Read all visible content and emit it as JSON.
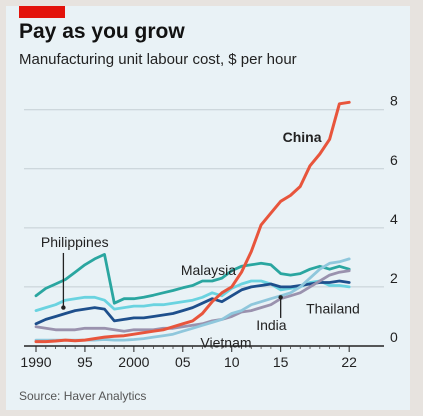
{
  "header": {
    "title": "Pay as you grow",
    "subtitle": "Manufacturing unit labour cost, $ per hour",
    "accent_color": "#e3120b"
  },
  "footer": {
    "source": "Source: Haver Analytics"
  },
  "chart_data": {
    "type": "line",
    "title": "Pay as you grow",
    "subtitle": "Manufacturing unit labour cost, $ per hour",
    "xlabel": "",
    "ylabel": "",
    "xlim": [
      1990,
      2022.8
    ],
    "ylim": [
      0,
      8.6
    ],
    "x_ticks": [
      1990,
      1995,
      2000,
      2005,
      2010,
      2015,
      2022
    ],
    "x_tick_labels": [
      "1990",
      "95",
      "2000",
      "05",
      "10",
      "15",
      "22"
    ],
    "y_ticks": [
      0,
      2,
      4,
      6,
      8
    ],
    "y_tick_labels": [
      "0",
      "2",
      "4",
      "6",
      "8"
    ],
    "y_axis_position": "right",
    "grid": "horizontal",
    "legend": "inline labels",
    "series": [
      {
        "name": "Philippines",
        "color": "#2aa6a0",
        "label_pos": [
          1992.8,
          1.3
        ],
        "x": [
          1990,
          1991,
          1992,
          1993,
          1994,
          1995,
          1996,
          1997,
          1998,
          1999,
          2000,
          2001,
          2002,
          2003,
          2004,
          2005,
          2006,
          2007,
          2008,
          2009,
          2010,
          2011,
          2012,
          2013,
          2014,
          2015,
          2016,
          2017,
          2018,
          2019,
          2020,
          2021,
          2022
        ],
        "y": [
          1.7,
          1.95,
          2.1,
          2.25,
          2.5,
          2.75,
          2.95,
          3.1,
          1.45,
          1.6,
          1.6,
          1.65,
          1.72,
          1.8,
          1.88,
          1.97,
          2.05,
          2.2,
          2.2,
          2.3,
          2.55,
          2.7,
          2.75,
          2.8,
          2.75,
          2.45,
          2.4,
          2.45,
          2.6,
          2.7,
          2.6,
          2.7,
          2.6
        ]
      },
      {
        "name": "Malaysia",
        "color": "#6ad3e0",
        "x": [
          1990,
          1991,
          1992,
          1993,
          1994,
          1995,
          1996,
          1997,
          1998,
          1999,
          2000,
          2001,
          2002,
          2003,
          2004,
          2005,
          2006,
          2007,
          2008,
          2009,
          2010,
          2011,
          2012,
          2013,
          2014,
          2015,
          2016,
          2017,
          2018,
          2019,
          2020,
          2021,
          2022
        ],
        "y": [
          1.2,
          1.3,
          1.4,
          1.55,
          1.6,
          1.65,
          1.65,
          1.55,
          1.25,
          1.3,
          1.35,
          1.35,
          1.4,
          1.4,
          1.45,
          1.5,
          1.55,
          1.65,
          1.8,
          1.7,
          1.95,
          2.1,
          2.2,
          2.2,
          2.1,
          1.9,
          1.95,
          2.0,
          2.15,
          2.2,
          2.05,
          2.05,
          2.0
        ]
      },
      {
        "name": "Thailand",
        "color": "#1e4f8c",
        "x": [
          1990,
          1991,
          1992,
          1993,
          1994,
          1995,
          1996,
          1997,
          1998,
          1999,
          2000,
          2001,
          2002,
          2003,
          2004,
          2005,
          2006,
          2007,
          2008,
          2009,
          2010,
          2011,
          2012,
          2013,
          2014,
          2015,
          2016,
          2017,
          2018,
          2019,
          2020,
          2021,
          2022
        ],
        "y": [
          0.75,
          0.9,
          1.0,
          1.1,
          1.2,
          1.25,
          1.3,
          1.25,
          0.85,
          0.9,
          0.95,
          0.95,
          1.0,
          1.05,
          1.1,
          1.2,
          1.3,
          1.45,
          1.6,
          1.5,
          1.7,
          1.9,
          2.0,
          2.05,
          2.1,
          2.0,
          2.0,
          2.05,
          2.1,
          2.15,
          2.15,
          2.2,
          2.15
        ]
      },
      {
        "name": "",
        "color": "#9a92ae",
        "x": [
          1990,
          1991,
          1992,
          1993,
          1994,
          1995,
          1996,
          1997,
          1998,
          1999,
          2000,
          2001,
          2002,
          2003,
          2004,
          2005,
          2006,
          2007,
          2008,
          2009,
          2010,
          2011,
          2012,
          2013,
          2014,
          2015,
          2016,
          2017,
          2018,
          2019,
          2020,
          2021,
          2022
        ],
        "y": [
          0.65,
          0.6,
          0.55,
          0.55,
          0.55,
          0.6,
          0.6,
          0.6,
          0.55,
          0.5,
          0.55,
          0.55,
          0.55,
          0.6,
          0.6,
          0.65,
          0.7,
          0.75,
          0.85,
          0.9,
          1.0,
          1.15,
          1.2,
          1.3,
          1.4,
          1.6,
          1.7,
          1.8,
          2.0,
          2.2,
          2.4,
          2.5,
          2.55
        ]
      },
      {
        "name": "India",
        "color": "#8fc7dc",
        "label_pos": [
          2015,
          1.65
        ],
        "x": [
          1990,
          1991,
          1992,
          1993,
          1994,
          1995,
          1996,
          1997,
          1998,
          1999,
          2000,
          2001,
          2002,
          2003,
          2004,
          2005,
          2006,
          2007,
          2008,
          2009,
          2010,
          2011,
          2012,
          2013,
          2014,
          2015,
          2016,
          2017,
          2018,
          2019,
          2020,
          2021,
          2022
        ],
        "y": [
          0.2,
          0.2,
          0.2,
          0.2,
          0.2,
          0.2,
          0.2,
          0.22,
          0.2,
          0.2,
          0.22,
          0.25,
          0.3,
          0.35,
          0.4,
          0.5,
          0.6,
          0.7,
          0.8,
          0.9,
          1.1,
          1.2,
          1.4,
          1.5,
          1.6,
          1.7,
          1.8,
          2.0,
          2.3,
          2.6,
          2.8,
          2.85,
          2.95
        ]
      },
      {
        "name": "China",
        "color": "#e8553c",
        "x": [
          1990,
          1991,
          1992,
          1993,
          1994,
          1995,
          1996,
          1997,
          1998,
          1999,
          2000,
          2001,
          2002,
          2003,
          2004,
          2005,
          2006,
          2007,
          2008,
          2009,
          2010,
          2011,
          2012,
          2013,
          2014,
          2015,
          2016,
          2017,
          2018,
          2019,
          2020,
          2021,
          2022
        ],
        "y": [
          0.15,
          0.15,
          0.17,
          0.2,
          0.18,
          0.2,
          0.25,
          0.3,
          0.33,
          0.35,
          0.4,
          0.45,
          0.5,
          0.55,
          0.65,
          0.75,
          0.85,
          1.1,
          1.5,
          1.8,
          2.0,
          2.5,
          3.2,
          4.1,
          4.5,
          4.9,
          5.1,
          5.4,
          6.1,
          6.5,
          7.0,
          8.2,
          8.25
        ]
      }
    ],
    "annotations": [
      {
        "text": "China",
        "color": "#1a1a1a",
        "bold": true,
        "anchor": [
          2015.2,
          6.9
        ]
      },
      {
        "text": "Malaysia",
        "color": "#333333",
        "anchor": [
          2004.8,
          2.4
        ]
      },
      {
        "text": "Philippines",
        "color": "#333333",
        "anchor": [
          1990.5,
          3.35
        ]
      },
      {
        "text": "India",
        "color": "#333333",
        "anchor": [
          2012.5,
          0.55
        ]
      },
      {
        "text": "Thailand",
        "color": "#333333",
        "anchor": [
          2017.6,
          1.1
        ]
      },
      {
        "text": "Vietnam",
        "color": "#333333",
        "anchor": [
          2006.8,
          -0.05
        ]
      }
    ]
  }
}
